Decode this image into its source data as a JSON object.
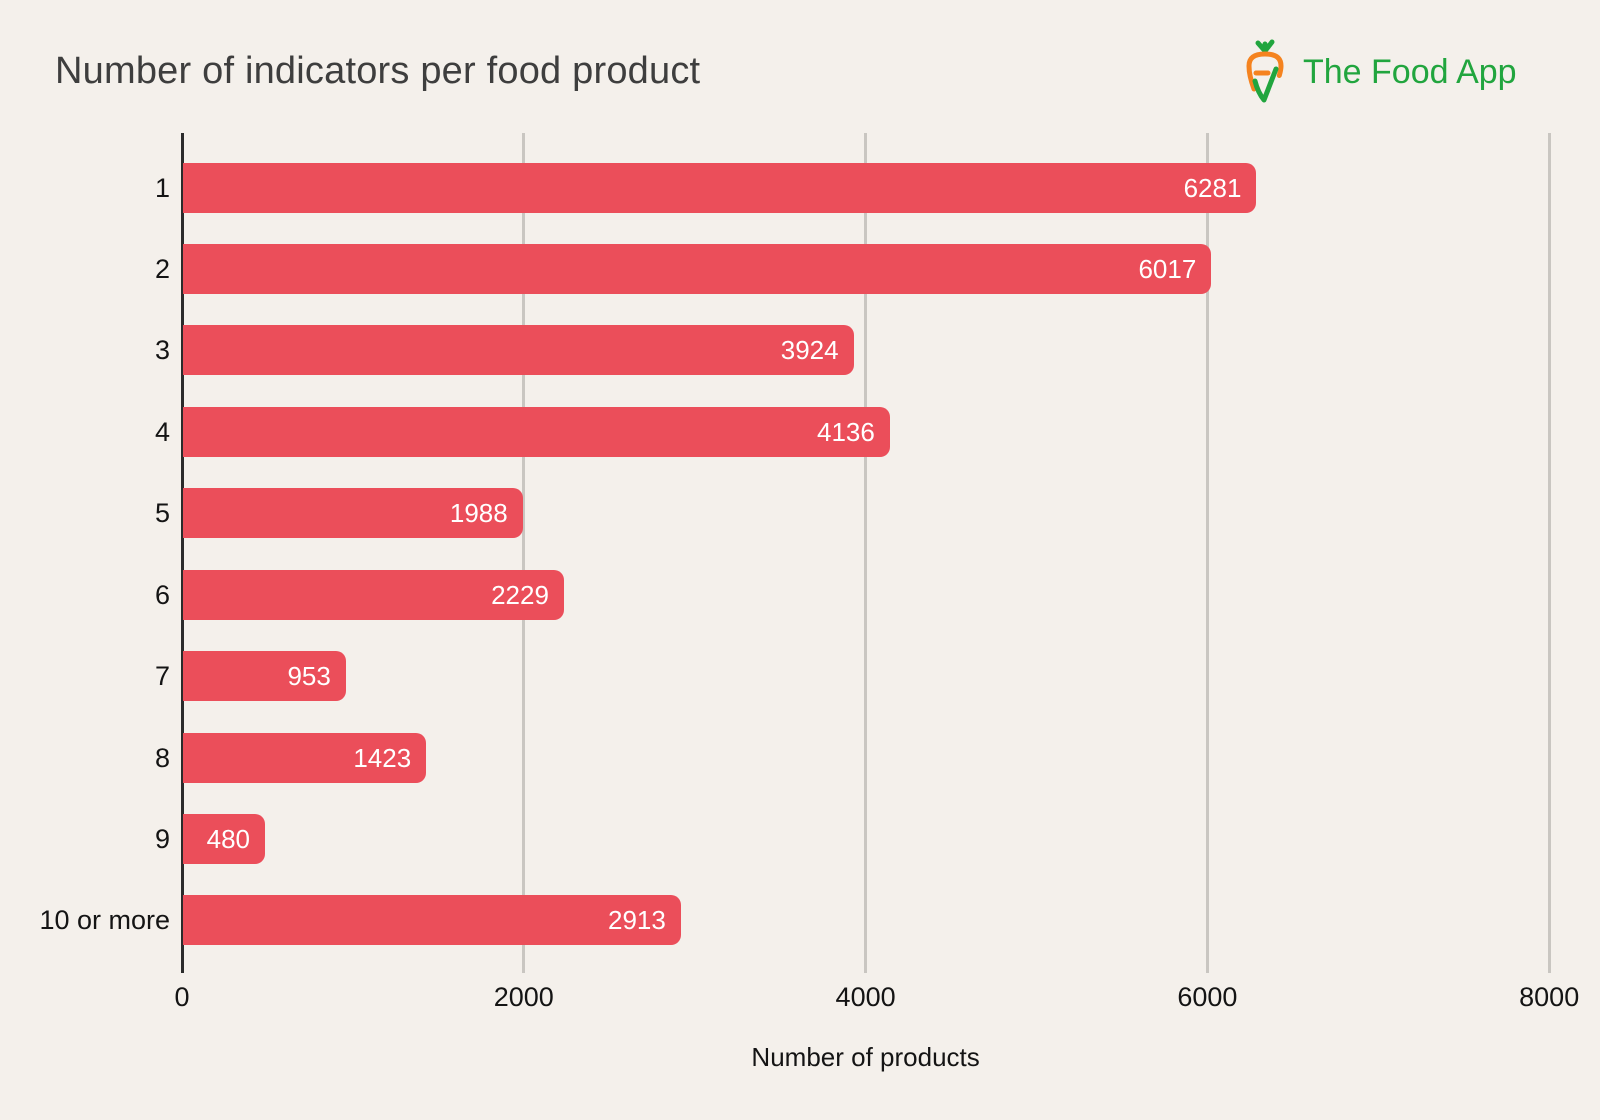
{
  "header": {
    "title": "Number of indicators per food product",
    "brand": {
      "name": "The Food App",
      "icon": "carrot-icon"
    }
  },
  "chart_data": {
    "type": "bar",
    "orientation": "horizontal",
    "title": "Number of indicators per food product",
    "categories": [
      "1",
      "2",
      "3",
      "4",
      "5",
      "6",
      "7",
      "8",
      "9",
      "10 or more"
    ],
    "values": [
      6281,
      6017,
      3924,
      4136,
      1988,
      2229,
      953,
      1423,
      480,
      2913
    ],
    "xlabel": "Number of products",
    "ylabel": "",
    "x_ticks": [
      0,
      2000,
      4000,
      6000,
      8000
    ],
    "xlim": [
      0,
      8000
    ],
    "grid": true,
    "legend": false,
    "value_labels_position": "inside-end"
  },
  "colors": {
    "background": "#F4F0EB",
    "bar": "#EB4E5A",
    "grid": "#C9C6C1",
    "axis": "#2B2B2B",
    "title_text": "#3E3E3E",
    "brand_green": "#21A53E",
    "brand_orange": "#F5831F",
    "label_text": "#141414",
    "value_text": "#FFFFFF"
  }
}
